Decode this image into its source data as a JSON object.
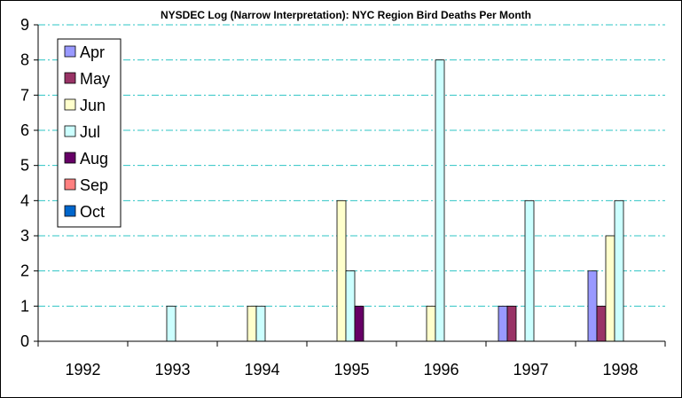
{
  "chart_data": {
    "type": "bar",
    "title": "NYSDEC Log (Narrow Interpretation): NYC Region Bird Deaths Per Month",
    "xlabel": "",
    "ylabel": "",
    "ylim": [
      0,
      9
    ],
    "yticks": [
      "0",
      "1",
      "2",
      "3",
      "4",
      "5",
      "6",
      "7",
      "8",
      "9"
    ],
    "categories": [
      "1992",
      "1993",
      "1994",
      "1995",
      "1996",
      "1997",
      "1998"
    ],
    "grid": "horizontal dash-dot",
    "legend_position": "top-left",
    "series": [
      {
        "name": "Apr",
        "color": "#9999ff",
        "values": [
          0,
          0,
          0,
          0,
          0,
          1,
          2
        ]
      },
      {
        "name": "May",
        "color": "#993366",
        "values": [
          0,
          0,
          0,
          0,
          0,
          1,
          1
        ]
      },
      {
        "name": "Jun",
        "color": "#ffffcc",
        "values": [
          0,
          0,
          1,
          4,
          1,
          0,
          3
        ]
      },
      {
        "name": "Jul",
        "color": "#ccffff",
        "values": [
          0,
          1,
          1,
          2,
          8,
          4,
          4
        ]
      },
      {
        "name": "Aug",
        "color": "#660066",
        "values": [
          0,
          0,
          0,
          1,
          0,
          0,
          0
        ]
      },
      {
        "name": "Sep",
        "color": "#ff8080",
        "values": [
          0,
          0,
          0,
          0,
          0,
          0,
          0
        ]
      },
      {
        "name": "Oct",
        "color": "#0066cc",
        "values": [
          0,
          0,
          0,
          0,
          0,
          0,
          0
        ]
      }
    ]
  }
}
